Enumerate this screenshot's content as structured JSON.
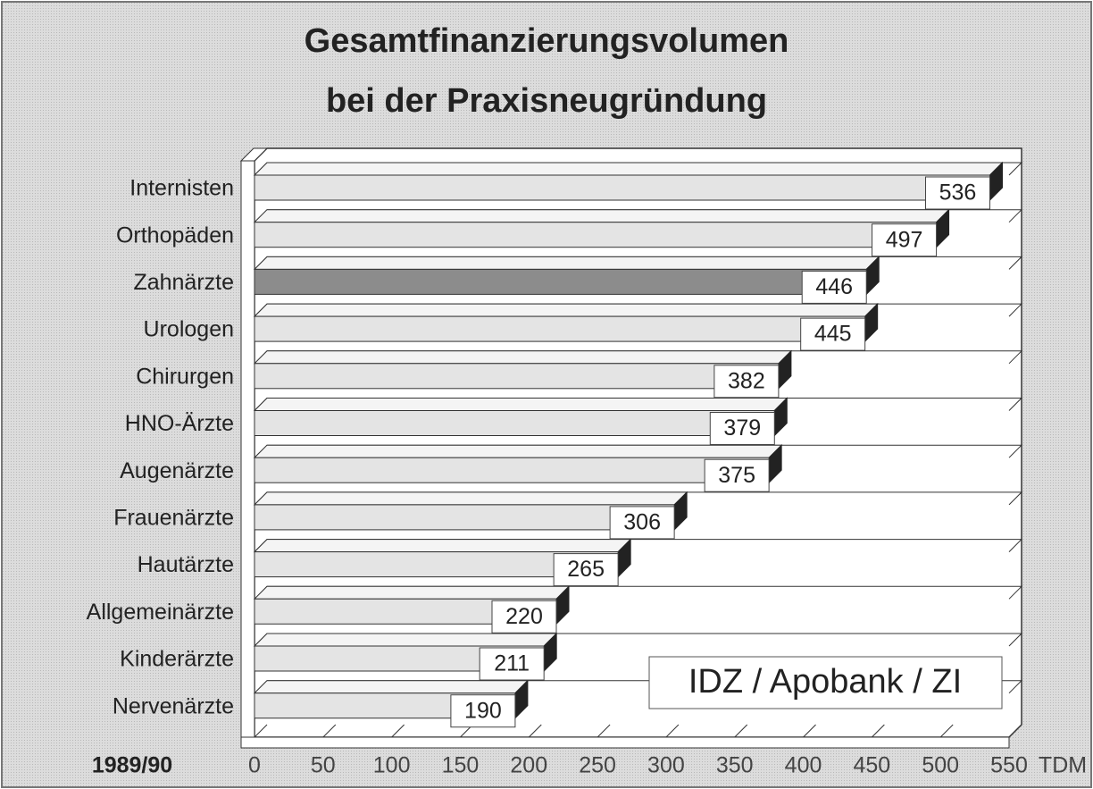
{
  "chart_data": {
    "type": "bar",
    "orientation": "horizontal",
    "title": [
      "Gesamtfinanzierungsvolumen",
      "bei der Praxisneugründung"
    ],
    "categories": [
      "Internisten",
      "Orthopäden",
      "Zahnärzte",
      "Urologen",
      "Chirurgen",
      "HNO-Ärzte",
      "Augenärzte",
      "Frauenärzte",
      "Hautärzte",
      "Allgemeinärzte",
      "Kinderärzte",
      "Nervenärzte"
    ],
    "values": [
      536,
      497,
      446,
      445,
      382,
      379,
      375,
      306,
      265,
      220,
      211,
      190
    ],
    "colors": [
      "#e4e4e4",
      "#e4e4e4",
      "#8c8c8c",
      "#e4e4e4",
      "#e4e4e4",
      "#e4e4e4",
      "#e4e4e4",
      "#e4e4e4",
      "#e4e4e4",
      "#e4e4e4",
      "#e4e4e4",
      "#e4e4e4"
    ],
    "xlim": [
      0,
      550
    ],
    "xticks": [
      0,
      50,
      100,
      150,
      200,
      250,
      300,
      350,
      400,
      450,
      500,
      550
    ],
    "xlabel": "TDM",
    "period": "1989/90",
    "source": "IDZ / Apobank / ZI"
  }
}
